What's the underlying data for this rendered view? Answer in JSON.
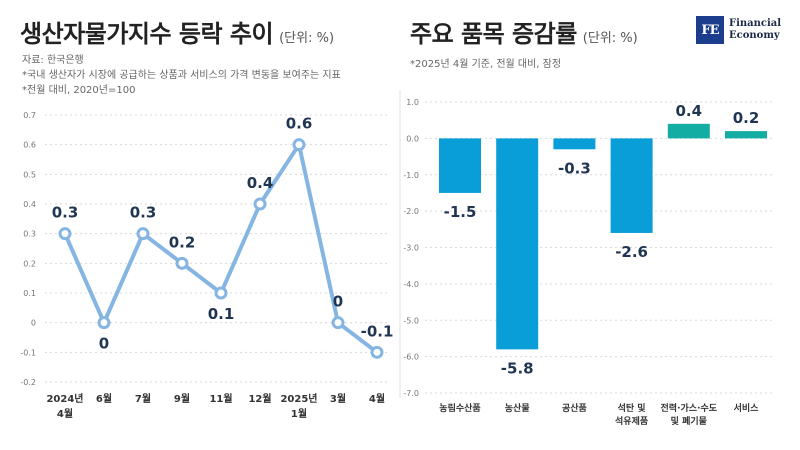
{
  "left": {
    "title": "생산자물가지수 등락 추이",
    "unit": "(단위: %)",
    "notes": [
      "자료: 한국은행",
      "*국내 생산자가 시장에 공급하는 상품과 서비스의 가격 변동을 보여주는 지표",
      "*전월 대비, 2020년=100"
    ]
  },
  "right": {
    "title": "주요 품목 증감률",
    "unit": "(단위: %)",
    "notes": [
      "*2025년 4월 기준, 전월 대비, 잠정"
    ]
  },
  "logo": {
    "mark": "FE",
    "line1": "Financial",
    "line2": "Economy",
    "color": "#1c3d8c"
  },
  "chart_data": [
    {
      "type": "line",
      "title": "생산자물가지수 등락 추이",
      "categories": [
        [
          "2024년",
          "4월"
        ],
        [
          "6월"
        ],
        [
          "7월"
        ],
        [
          "9월"
        ],
        [
          "11월"
        ],
        [
          "12월"
        ],
        [
          "2025년",
          "1월"
        ],
        [
          "3월"
        ],
        [
          "4월"
        ]
      ],
      "values": [
        0.3,
        0,
        0.3,
        0.2,
        0.1,
        0.4,
        0.6,
        0,
        -0.1
      ],
      "labels": [
        "0.3",
        "0",
        "0.3",
        "0.2",
        "0.1",
        "0.4",
        "0.6",
        "0",
        "-0.1"
      ],
      "ylim": [
        -0.2,
        0.7
      ],
      "yticks": [
        "0.7",
        "0.6",
        "0.5",
        "0.4",
        "0.3",
        "0.2",
        "0.1",
        "0",
        "-0.1",
        "-0.2"
      ],
      "grid": true,
      "color": "#85b5e2"
    },
    {
      "type": "bar",
      "title": "주요 품목 증감률",
      "categories": [
        [
          "농림수산품"
        ],
        [
          "농산물"
        ],
        [
          "공산품"
        ],
        [
          "석탄 및",
          "석유제품"
        ],
        [
          "전력·가스·수도",
          "및 폐기물"
        ],
        [
          "서비스"
        ]
      ],
      "values": [
        -1.5,
        -5.8,
        -0.3,
        -2.6,
        0.4,
        0.2
      ],
      "labels": [
        "-1.5",
        "-5.8",
        "-0.3",
        "-2.6",
        "0.4",
        "0.2"
      ],
      "ylim": [
        -7,
        1
      ],
      "yticks": [
        "1.0",
        "0.0",
        "-1.0",
        "-2.0",
        "-3.0",
        "-4.0",
        "-5.0",
        "-6.0",
        "-7.0"
      ],
      "grid": true,
      "colors": {
        "negative": "#0a9ed9",
        "positive": "#14ada4"
      }
    }
  ]
}
